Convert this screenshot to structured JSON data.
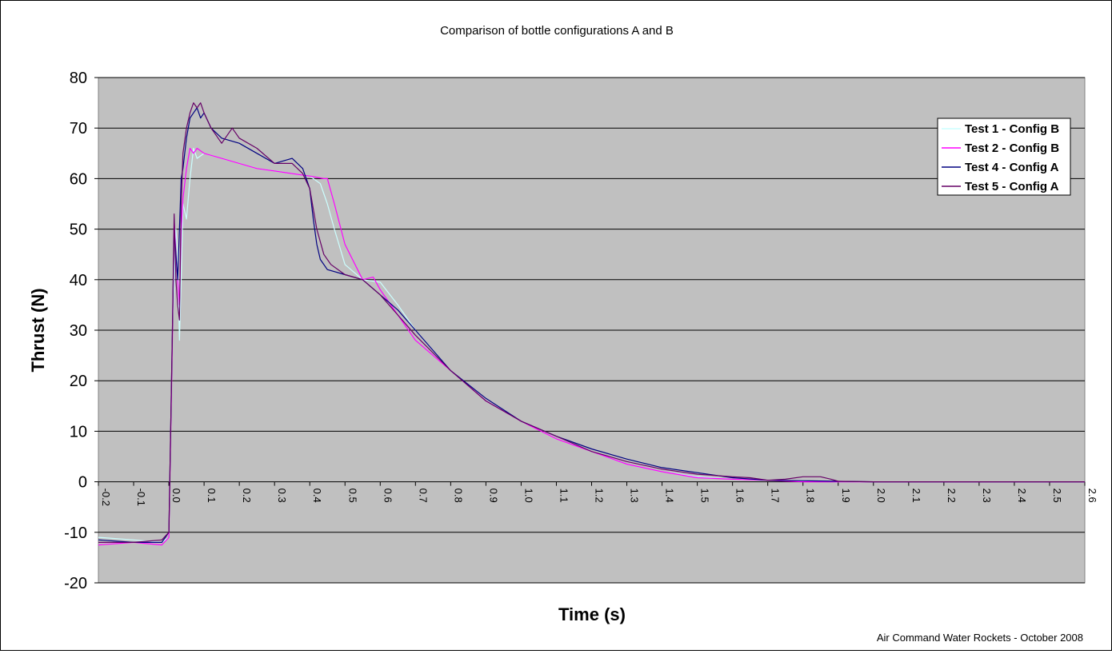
{
  "chart_data": {
    "type": "line",
    "title": "Comparison of bottle configurations A and B",
    "xlabel": "Time (s)",
    "ylabel": "Thrust (N)",
    "credit": "Air Command Water Rockets - October 2008",
    "xlim": [
      -0.2,
      2.6
    ],
    "ylim": [
      -20,
      80
    ],
    "x_ticks": [
      "-0.2",
      "-0.1",
      "0.0",
      "0.1",
      "0.2",
      "0.3",
      "0.4",
      "0.5",
      "0.6",
      "0.7",
      "0.8",
      "0.9",
      "1.0",
      "1.1",
      "1.2",
      "1.3",
      "1.4",
      "1.5",
      "1.6",
      "1.7",
      "1.8",
      "1.9",
      "2.0",
      "2.1",
      "2.2",
      "2.3",
      "2.4",
      "2.5",
      "2.6"
    ],
    "y_ticks": [
      "80",
      "70",
      "60",
      "50",
      "40",
      "30",
      "20",
      "10",
      "0",
      "-10",
      "-20"
    ],
    "grid": "horizontal",
    "legend_position": "top-right",
    "plot_background": "#c0c0c0",
    "series": [
      {
        "name": "Test 1 - Config B",
        "color": "#ccffff",
        "x": [
          -0.2,
          -0.1,
          -0.02,
          0.0,
          0.01,
          0.02,
          0.025,
          0.03,
          0.035,
          0.04,
          0.05,
          0.06,
          0.07,
          0.08,
          0.1,
          0.15,
          0.2,
          0.25,
          0.3,
          0.35,
          0.4,
          0.43,
          0.45,
          0.47,
          0.5,
          0.55,
          0.6,
          0.65,
          0.7,
          0.8,
          0.9,
          1.0,
          1.1,
          1.2,
          1.3,
          1.4,
          1.5,
          1.6,
          1.7,
          1.8,
          1.9,
          2.0,
          2.2,
          2.4,
          2.6
        ],
        "y": [
          -11,
          -11.5,
          -12,
          -11,
          30,
          50,
          45,
          28,
          40,
          55,
          52,
          60,
          66,
          64,
          65,
          64,
          63,
          62,
          61.5,
          61,
          60.5,
          59,
          55,
          50,
          43,
          40,
          39.5,
          35,
          30,
          22,
          16,
          12,
          9,
          6,
          3.5,
          2,
          1,
          0.5,
          0.3,
          0.2,
          0,
          0,
          0,
          0,
          0
        ]
      },
      {
        "name": "Test 2 - Config B",
        "color": "#ff00ff",
        "x": [
          -0.2,
          -0.1,
          -0.02,
          0.0,
          0.01,
          0.015,
          0.02,
          0.025,
          0.03,
          0.035,
          0.04,
          0.05,
          0.06,
          0.07,
          0.08,
          0.1,
          0.15,
          0.2,
          0.25,
          0.3,
          0.35,
          0.4,
          0.44,
          0.45,
          0.47,
          0.5,
          0.55,
          0.58,
          0.6,
          0.65,
          0.7,
          0.8,
          0.9,
          1.0,
          1.1,
          1.2,
          1.3,
          1.4,
          1.5,
          1.6,
          1.7,
          1.8,
          1.9,
          2.0,
          2.2,
          2.4,
          2.6
        ],
        "y": [
          -12.5,
          -12,
          -12.5,
          -11,
          28,
          52,
          45,
          40,
          35,
          50,
          56,
          62,
          66,
          65,
          66,
          65,
          64,
          63,
          62,
          61.5,
          61,
          60.5,
          60,
          60,
          55,
          47,
          40,
          40.5,
          38,
          33,
          28,
          22,
          16,
          12,
          8.5,
          6,
          3.5,
          2,
          0.8,
          0.5,
          0.3,
          0,
          0,
          0,
          0,
          0,
          0
        ]
      },
      {
        "name": "Test 4 - Config A",
        "color": "#000080",
        "x": [
          -0.2,
          -0.1,
          -0.02,
          0.0,
          0.01,
          0.015,
          0.02,
          0.025,
          0.03,
          0.035,
          0.04,
          0.05,
          0.06,
          0.07,
          0.08,
          0.09,
          0.1,
          0.12,
          0.15,
          0.2,
          0.25,
          0.3,
          0.35,
          0.38,
          0.4,
          0.41,
          0.42,
          0.43,
          0.45,
          0.5,
          0.55,
          0.6,
          0.65,
          0.7,
          0.8,
          0.9,
          1.0,
          1.1,
          1.2,
          1.3,
          1.4,
          1.5,
          1.6,
          1.7,
          1.8,
          1.9,
          2.0,
          2.2,
          2.4,
          2.6
        ],
        "y": [
          -11.5,
          -12,
          -12,
          -10,
          30,
          50,
          45,
          40,
          50,
          60,
          62,
          68,
          72,
          73,
          74,
          72,
          73,
          70,
          68,
          67,
          65,
          63,
          64,
          62,
          58,
          52,
          47,
          44,
          42,
          41,
          40,
          37,
          34,
          30,
          22,
          16.5,
          12,
          9,
          6.5,
          4.5,
          2.8,
          1.8,
          0.8,
          0.3,
          0.2,
          0.1,
          0,
          0,
          0,
          0
        ]
      },
      {
        "name": "Test 5 - Config A",
        "color": "#660066",
        "x": [
          -0.2,
          -0.1,
          -0.02,
          0.0,
          0.01,
          0.015,
          0.02,
          0.025,
          0.03,
          0.035,
          0.04,
          0.05,
          0.06,
          0.07,
          0.08,
          0.09,
          0.1,
          0.12,
          0.15,
          0.18,
          0.2,
          0.25,
          0.3,
          0.35,
          0.38,
          0.4,
          0.42,
          0.44,
          0.46,
          0.5,
          0.55,
          0.6,
          0.65,
          0.7,
          0.8,
          0.9,
          1.0,
          1.1,
          1.2,
          1.3,
          1.4,
          1.5,
          1.6,
          1.65,
          1.7,
          1.75,
          1.8,
          1.85,
          1.88,
          1.9,
          2.0,
          2.2,
          2.4,
          2.6
        ],
        "y": [
          -12,
          -12,
          -11.5,
          -10,
          30,
          53,
          40,
          35,
          32,
          55,
          65,
          70,
          73,
          75,
          74,
          75,
          73,
          70,
          67,
          70,
          68,
          66,
          63,
          63,
          61,
          58,
          50,
          45,
          43,
          41,
          40,
          37,
          33,
          29,
          22,
          16,
          12,
          9,
          6,
          4,
          2.5,
          1.5,
          1,
          0.8,
          0.3,
          0.5,
          1,
          1,
          0.5,
          0.1,
          0,
          0,
          0,
          0
        ]
      }
    ]
  }
}
